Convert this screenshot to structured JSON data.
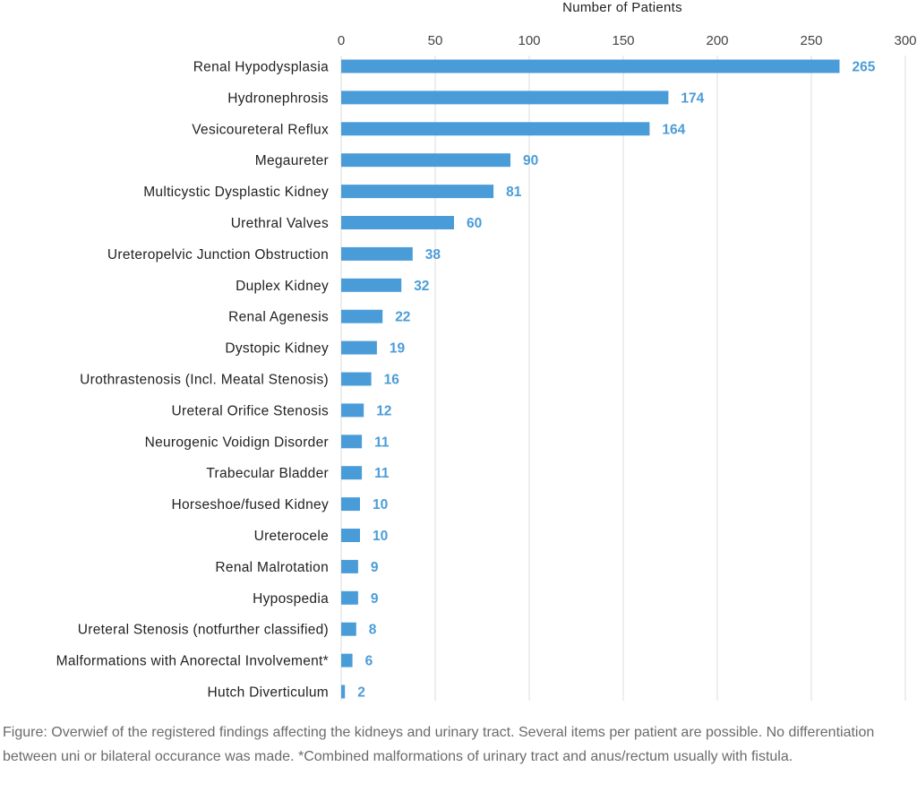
{
  "chart_data": {
    "type": "bar",
    "orientation": "horizontal",
    "xlabel": "Number of Patients",
    "xlim": [
      0,
      300
    ],
    "xticks": [
      0,
      50,
      100,
      150,
      200,
      250,
      300
    ],
    "grid": "vertical",
    "bar_color": "#4a9cd8",
    "label_color": "#4a9cd8",
    "categories": [
      "Renal Hypodysplasia",
      "Hydronephrosis",
      "Vesicoureteral Reflux",
      "Megaureter",
      "Multicystic Dysplastic Kidney",
      "Urethral Valves",
      "Ureteropelvic Junction Obstruction",
      "Duplex Kidney",
      "Renal Agenesis",
      "Dystopic Kidney",
      "Urothrastenosis (Incl. Meatal Stenosis)",
      "Ureteral Orifice Stenosis",
      "Neurogenic Voidign Disorder",
      "Trabecular Bladder",
      "Horseshoe/fused Kidney",
      "Ureterocele",
      "Renal Malrotation",
      "Hypospedia",
      "Ureteral Stenosis (notfurther classified)",
      "Malformations with Anorectal Involvement*",
      "Hutch Diverticulum"
    ],
    "values": [
      265,
      174,
      164,
      90,
      81,
      60,
      38,
      32,
      22,
      19,
      16,
      12,
      11,
      11,
      10,
      10,
      9,
      9,
      8,
      6,
      2
    ]
  },
  "caption": "Figure: Overwief of the registered findings affecting the kidneys and urinary tract. Several items per patient are possible. No differentiation between uni or bilateral occurance was made. *Combined malformations of urinary tract and anus/rectum usually with fistula."
}
